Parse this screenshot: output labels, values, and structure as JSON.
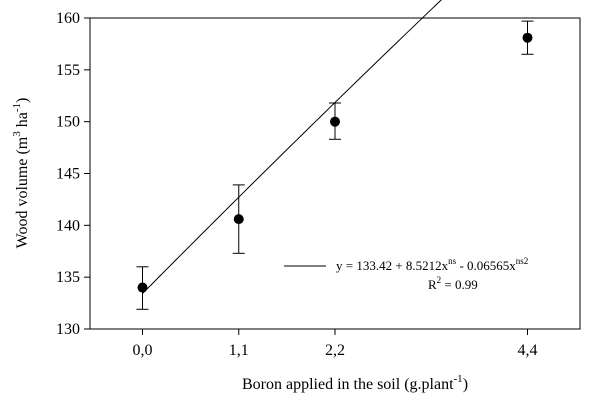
{
  "chart_data": {
    "type": "scatter",
    "title": "",
    "xlabel": "Boron applied in the soil (g.plant",
    "xlabel_sup": "-1",
    "xlabel_tail": ")",
    "ylabel_pre": "Wood volume (m",
    "ylabel_sup1": "3",
    "ylabel_mid": " ha",
    "ylabel_sup2": "-1",
    "ylabel_tail": ")",
    "xlim": [
      -0.6,
      5.0
    ],
    "ylim": [
      130,
      160
    ],
    "x_ticks": [
      {
        "value": 0.0,
        "label": "0,0"
      },
      {
        "value": 1.1,
        "label": "1,1"
      },
      {
        "value": 2.2,
        "label": "2,2"
      },
      {
        "value": 4.4,
        "label": "4,4"
      }
    ],
    "y_ticks": [
      130,
      135,
      140,
      145,
      150,
      155,
      160
    ],
    "points": [
      {
        "x": 0.0,
        "y": 134.0,
        "err_low": 131.9,
        "err_high": 136.0
      },
      {
        "x": 1.1,
        "y": 140.6,
        "err_low": 137.3,
        "err_high": 143.9
      },
      {
        "x": 2.2,
        "y": 150.0,
        "err_low": 148.3,
        "err_high": 151.8
      },
      {
        "x": 4.4,
        "y": 158.1,
        "err_low": 156.5,
        "err_high": 159.7
      }
    ],
    "fit": {
      "a": 133.42,
      "b": 8.5212,
      "c": -0.06565,
      "x_from": 0.0,
      "x_to": 4.4
    },
    "legend": {
      "eq_a": "y = 133.42 + 8.5212x",
      "eq_sup1": "ns",
      "eq_b": " - 0.06565x",
      "eq_sup2": "ns2",
      "r2_pre": "R",
      "r2_sup": "2",
      "r2_post": " = 0.99"
    },
    "grid": false
  }
}
